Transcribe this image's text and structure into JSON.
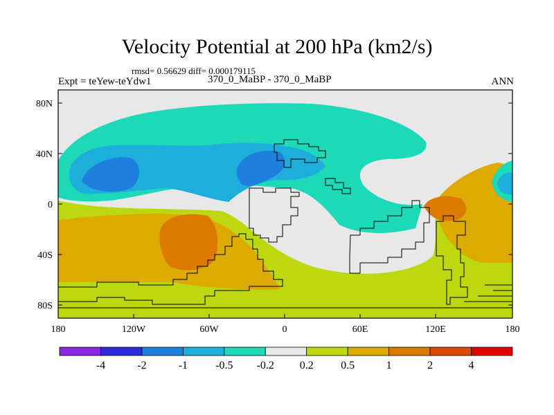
{
  "title": "Velocity Potential at 200 hPa (km2/s)",
  "stats": "rmsd= 0.56629 diff= 0.000179115",
  "experiment": "Expt = teYew-teYdw1",
  "period": "370_0_MaBP - 370_0_MaBP",
  "season": "ANN",
  "axes": {
    "x_ticks": [
      "180",
      "120W",
      "60W",
      "0",
      "60E",
      "120E",
      "180"
    ],
    "y_ticks": [
      "80N",
      "40N",
      "0",
      "40S",
      "80S"
    ]
  },
  "colorbar": {
    "colors": [
      "#8a2be2",
      "#2b2bdc",
      "#1e7fdc",
      "#1eaedc",
      "#1ed9b8",
      "#e8e8e8",
      "#bdd810",
      "#dcaa00",
      "#dc7a00",
      "#dc4a00",
      "#e00000"
    ],
    "labels": [
      "-4",
      "-2",
      "-1",
      "-0.5",
      "-0.2",
      "0.2",
      "0.5",
      "1",
      "2",
      "4"
    ]
  }
}
